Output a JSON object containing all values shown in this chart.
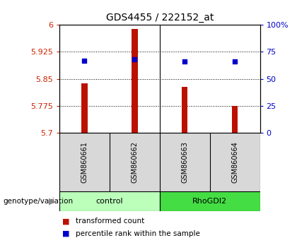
{
  "title": "GDS4455 / 222152_at",
  "samples": [
    "GSM860661",
    "GSM860662",
    "GSM860663",
    "GSM860664"
  ],
  "red_values": [
    5.837,
    5.988,
    5.828,
    5.775
  ],
  "blue_values_pct": [
    67,
    68,
    66,
    66
  ],
  "ylim_left": [
    5.7,
    6.0
  ],
  "ylim_right": [
    0,
    100
  ],
  "yticks_left": [
    5.7,
    5.775,
    5.85,
    5.925,
    6.0
  ],
  "yticks_right": [
    0,
    25,
    50,
    75,
    100
  ],
  "ytick_labels_left": [
    "5.7",
    "5.775",
    "5.85",
    "5.925",
    "6"
  ],
  "ytick_labels_right": [
    "0",
    "25",
    "50",
    "75",
    "100%"
  ],
  "left_color": "#cc2200",
  "right_color": "#0000cc",
  "bar_color": "#bb1100",
  "dot_color": "#0000cc",
  "control_color": "#bbffbb",
  "rhogdi2_color": "#44dd44",
  "sample_bg": "#d8d8d8",
  "group_label": "genotype/variation",
  "legend_red": "transformed count",
  "legend_blue": "percentile rank within the sample",
  "bar_width": 0.12
}
